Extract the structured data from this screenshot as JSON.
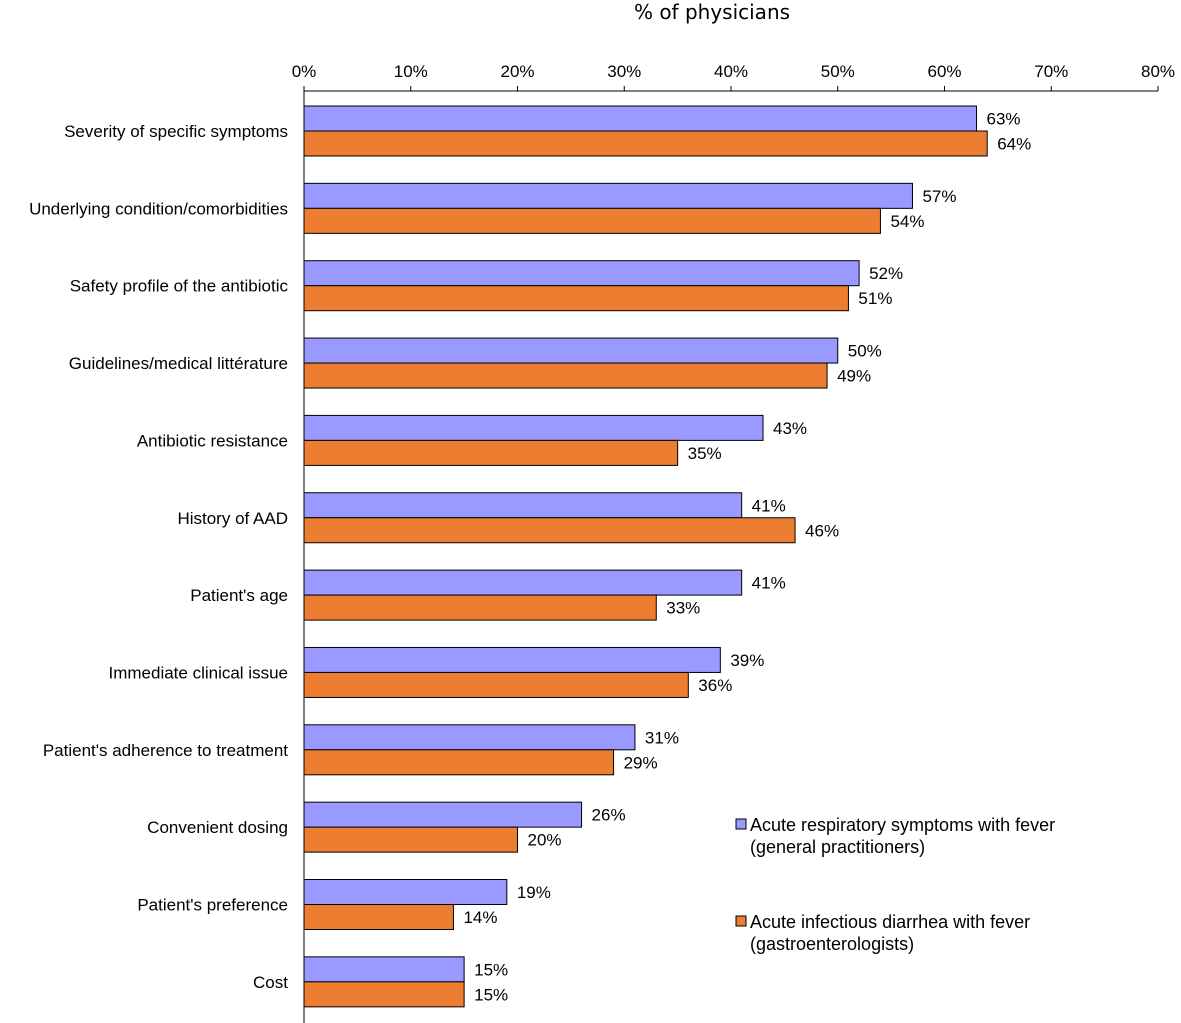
{
  "chart_data": {
    "type": "bar",
    "orientation": "horizontal",
    "title": "% of physicians",
    "xlabel": "% of physicians",
    "xlim": [
      0,
      80
    ],
    "xticks": [
      "0%",
      "10%",
      "20%",
      "30%",
      "40%",
      "50%",
      "60%",
      "70%",
      "80%"
    ],
    "grid": false,
    "legend_position": "bottom-right",
    "categories": [
      "Severity of specific symptoms",
      "Underlying condition/comorbidities",
      "Safety profile of the antibiotic",
      "Guidelines/medical littérature",
      "Antibiotic resistance",
      "History of AAD",
      "Patient's age",
      "Immediate clinical issue",
      "Patient's adherence to treatment",
      "Convenient dosing",
      "Patient's preference",
      "Cost"
    ],
    "series": [
      {
        "name": "Acute respiratory symptoms with fever (general practitioners)",
        "legend_lines": [
          "Acute respiratory symptoms with fever",
          "(general practitioners)"
        ],
        "color": "#9999FF",
        "values": [
          63,
          57,
          52,
          50,
          43,
          41,
          41,
          39,
          31,
          26,
          19,
          15
        ]
      },
      {
        "name": "Acute infectious diarrhea with fever (gastroenterologists)",
        "legend_lines": [
          "Acute infectious diarrhea with fever",
          "(gastroenterologists)"
        ],
        "color": "#ED7D31",
        "values": [
          64,
          54,
          51,
          49,
          35,
          46,
          33,
          36,
          29,
          20,
          14,
          15
        ]
      }
    ]
  }
}
